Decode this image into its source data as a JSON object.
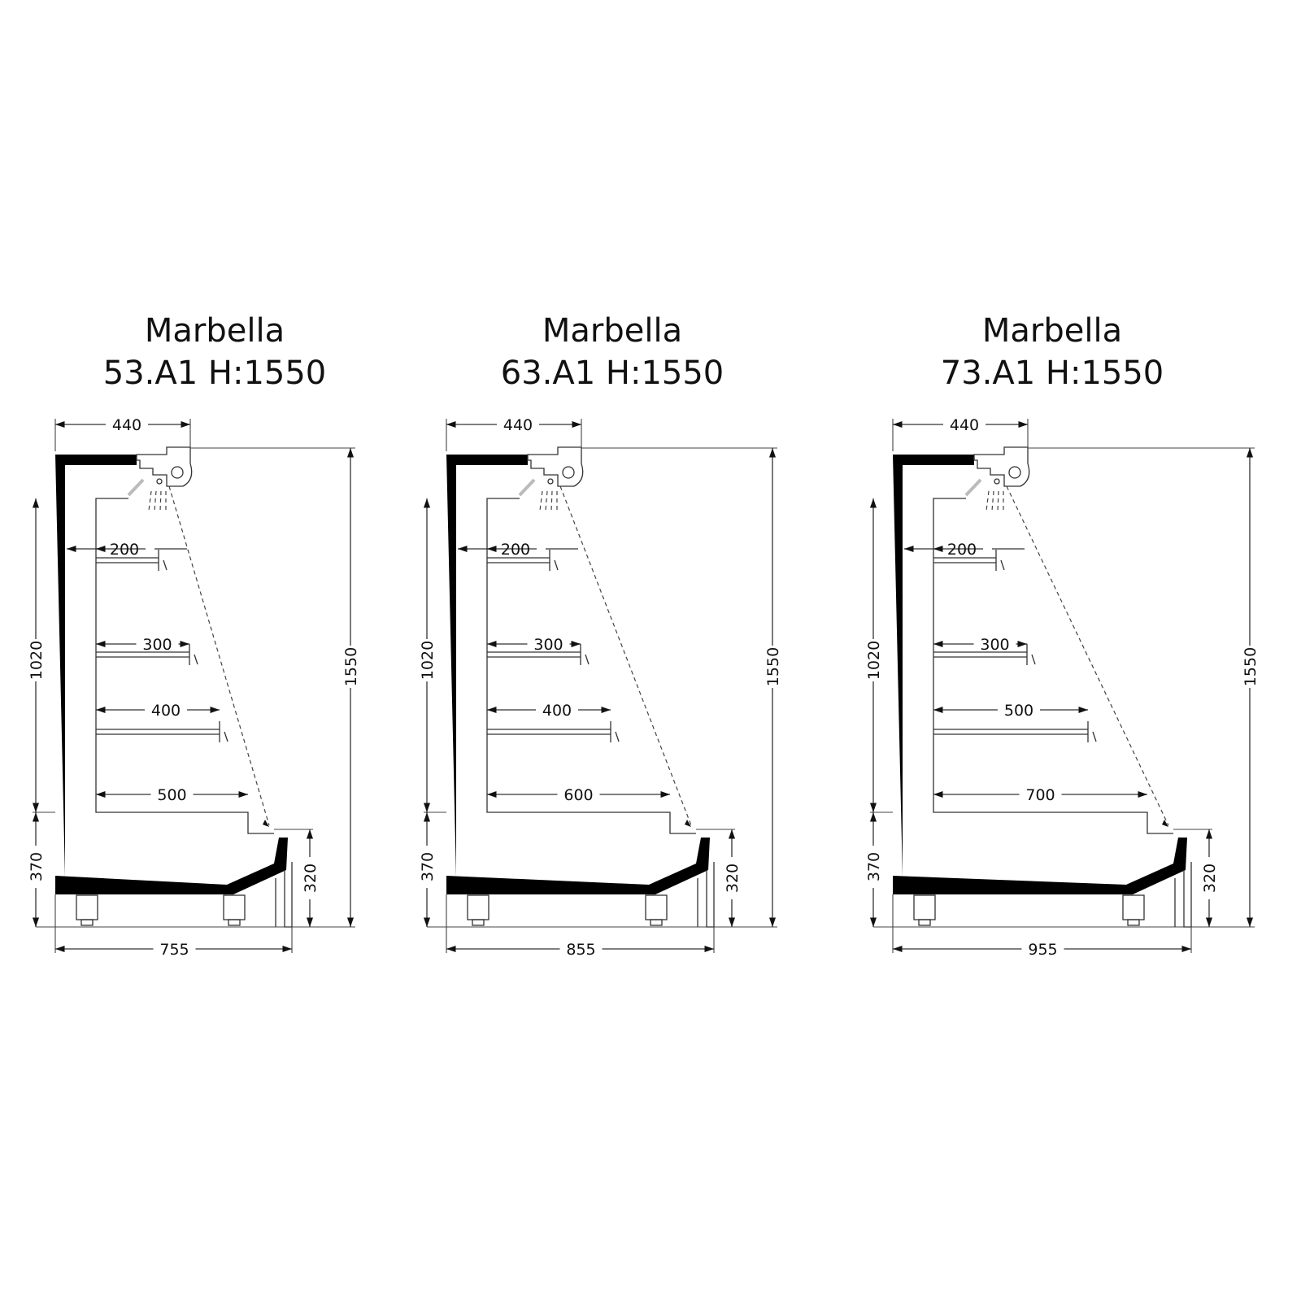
{
  "drawings": [
    {
      "title_line1": "Marbella",
      "title_line2": "53.A1 H:1550",
      "top_width": "440",
      "total_height": "1550",
      "upper_height": "1020",
      "lower_height": "370",
      "front_height": "320",
      "total_depth": "755",
      "shelf_depths": [
        "200",
        "300",
        "400",
        "500"
      ]
    },
    {
      "title_line1": "Marbella",
      "title_line2": "63.A1 H:1550",
      "top_width": "440",
      "total_height": "1550",
      "upper_height": "1020",
      "lower_height": "370",
      "front_height": "320",
      "total_depth": "855",
      "shelf_depths": [
        "200",
        "300",
        "400",
        "600"
      ]
    },
    {
      "title_line1": "Marbella",
      "title_line2": "73.A1 H:1550",
      "top_width": "440",
      "total_height": "1550",
      "upper_height": "1020",
      "lower_height": "370",
      "front_height": "320",
      "total_depth": "955",
      "shelf_depths": [
        "200",
        "300",
        "500",
        "700"
      ]
    }
  ]
}
